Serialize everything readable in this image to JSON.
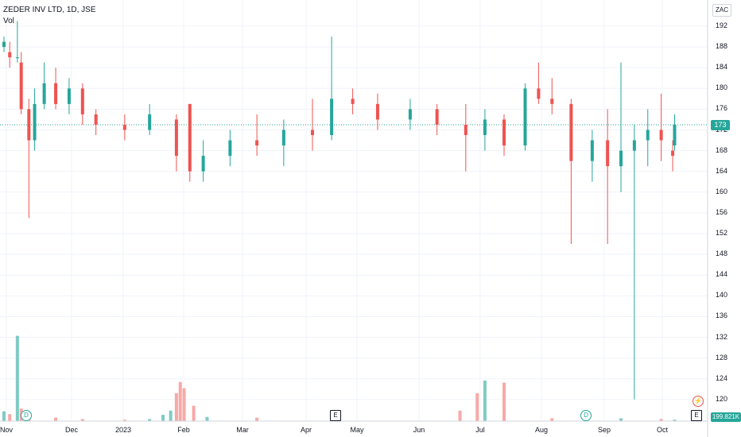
{
  "legend": {
    "symbol_line": "ZEDER INV LTD, 1D, JSE",
    "vol_label": "Vol"
  },
  "currency": "ZAC",
  "last_price": "173",
  "last_volume": "199.821K",
  "y_ticks": [
    "192",
    "188",
    "184",
    "180",
    "176",
    "172",
    "168",
    "164",
    "160",
    "156",
    "152",
    "148",
    "144",
    "140",
    "136",
    "132",
    "128",
    "124",
    "120"
  ],
  "x_ticks": [
    "Nov",
    "Dec",
    "2023",
    "Feb",
    "Mar",
    "Apr",
    "May",
    "Jun",
    "Jul",
    "Aug",
    "Sep",
    "Oct"
  ],
  "events": {
    "dividend_1": "D",
    "earnings_1": "E",
    "dividend_2": "D",
    "earnings_2": "E",
    "flash": "⚡"
  },
  "colors": {
    "up": "#26a69a",
    "down": "#ef5350",
    "up_vol": "#80cbc4",
    "down_vol": "#f7a9a7",
    "grid": "#f0f3fa"
  },
  "chart_data": {
    "type": "candlestick",
    "title": "ZEDER INV LTD, 1D, JSE",
    "ylim": [
      118,
      194
    ],
    "y_unit": "ZAC",
    "x_range": [
      "2022-11-01",
      "2023-10-17"
    ],
    "grid": true,
    "series": [
      {
        "name": "ZEDER INV LTD",
        "kind": "ohlc",
        "points": [
          {
            "date": "2022-11-01",
            "open": 188,
            "high": 190,
            "low": 187,
            "close": 189
          },
          {
            "date": "2022-11-04",
            "open": 187,
            "high": 189,
            "low": 184,
            "close": 186
          },
          {
            "date": "2022-11-08",
            "open": 186,
            "high": 193,
            "low": 185,
            "close": 186
          },
          {
            "date": "2022-11-10",
            "open": 185,
            "high": 187,
            "low": 175,
            "close": 176
          },
          {
            "date": "2022-11-14",
            "open": 176,
            "high": 178,
            "low": 155,
            "close": 170
          },
          {
            "date": "2022-11-17",
            "open": 170,
            "high": 180,
            "low": 168,
            "close": 177
          },
          {
            "date": "2022-11-22",
            "open": 177,
            "high": 185,
            "low": 176,
            "close": 181
          },
          {
            "date": "2022-11-28",
            "open": 181,
            "high": 184,
            "low": 176,
            "close": 177
          },
          {
            "date": "2022-12-05",
            "open": 177,
            "high": 182,
            "low": 175,
            "close": 180
          },
          {
            "date": "2022-12-12",
            "open": 180,
            "high": 181,
            "low": 173,
            "close": 175
          },
          {
            "date": "2022-12-19",
            "open": 175,
            "high": 176,
            "low": 171,
            "close": 173
          },
          {
            "date": "2023-01-03",
            "open": 173,
            "high": 175,
            "low": 170,
            "close": 172
          },
          {
            "date": "2023-01-16",
            "open": 172,
            "high": 177,
            "low": 171,
            "close": 175
          },
          {
            "date": "2023-01-30",
            "open": 174,
            "high": 175,
            "low": 164,
            "close": 167
          },
          {
            "date": "2023-02-06",
            "open": 177,
            "high": 177,
            "low": 162,
            "close": 164
          },
          {
            "date": "2023-02-13",
            "open": 164,
            "high": 170,
            "low": 162,
            "close": 167
          },
          {
            "date": "2023-02-27",
            "open": 167,
            "high": 172,
            "low": 165,
            "close": 170
          },
          {
            "date": "2023-03-13",
            "open": 170,
            "high": 175,
            "low": 167,
            "close": 169
          },
          {
            "date": "2023-03-27",
            "open": 169,
            "high": 174,
            "low": 165,
            "close": 172
          },
          {
            "date": "2023-04-11",
            "open": 172,
            "high": 178,
            "low": 168,
            "close": 171
          },
          {
            "date": "2023-04-21",
            "open": 171,
            "high": 190,
            "low": 170,
            "close": 178
          },
          {
            "date": "2023-05-02",
            "open": 178,
            "high": 180,
            "low": 175,
            "close": 177
          },
          {
            "date": "2023-05-15",
            "open": 177,
            "high": 179,
            "low": 172,
            "close": 174
          },
          {
            "date": "2023-06-01",
            "open": 174,
            "high": 178,
            "low": 172,
            "close": 176
          },
          {
            "date": "2023-06-15",
            "open": 176,
            "high": 177,
            "low": 171,
            "close": 173
          },
          {
            "date": "2023-06-30",
            "open": 173,
            "high": 177,
            "low": 164,
            "close": 171
          },
          {
            "date": "2023-07-10",
            "open": 171,
            "high": 176,
            "low": 168,
            "close": 174
          },
          {
            "date": "2023-07-20",
            "open": 174,
            "high": 175,
            "low": 167,
            "close": 169
          },
          {
            "date": "2023-07-31",
            "open": 169,
            "high": 181,
            "low": 168,
            "close": 180
          },
          {
            "date": "2023-08-07",
            "open": 180,
            "high": 185,
            "low": 177,
            "close": 178
          },
          {
            "date": "2023-08-14",
            "open": 178,
            "high": 182,
            "low": 175,
            "close": 177
          },
          {
            "date": "2023-08-24",
            "open": 177,
            "high": 178,
            "low": 150,
            "close": 166
          },
          {
            "date": "2023-09-04",
            "open": 166,
            "high": 172,
            "low": 162,
            "close": 170
          },
          {
            "date": "2023-09-12",
            "open": 170,
            "high": 176,
            "low": 150,
            "close": 165
          },
          {
            "date": "2023-09-19",
            "open": 165,
            "high": 185,
            "low": 160,
            "close": 168
          },
          {
            "date": "2023-09-26",
            "open": 168,
            "high": 173,
            "low": 120,
            "close": 170
          },
          {
            "date": "2023-10-03",
            "open": 170,
            "high": 176,
            "low": 165,
            "close": 172
          },
          {
            "date": "2023-10-10",
            "open": 172,
            "high": 179,
            "low": 166,
            "close": 170
          },
          {
            "date": "2023-10-16",
            "open": 168,
            "high": 170,
            "low": 164,
            "close": 167
          },
          {
            "date": "2023-10-17",
            "open": 169,
            "high": 175,
            "low": 168,
            "close": 173
          }
        ]
      },
      {
        "name": "Vol",
        "kind": "volume",
        "points": [
          {
            "date": "2022-11-01",
            "value": 14
          },
          {
            "date": "2022-11-04",
            "value": 10
          },
          {
            "date": "2022-11-08",
            "value": 122
          },
          {
            "date": "2022-11-10",
            "value": 18
          },
          {
            "date": "2022-11-14",
            "value": 4
          },
          {
            "date": "2022-11-28",
            "value": 5
          },
          {
            "date": "2022-12-12",
            "value": 3
          },
          {
            "date": "2023-01-03",
            "value": 2
          },
          {
            "date": "2023-01-16",
            "value": 3
          },
          {
            "date": "2023-01-23",
            "value": 9
          },
          {
            "date": "2023-01-27",
            "value": 15
          },
          {
            "date": "2023-01-30",
            "value": 40
          },
          {
            "date": "2023-02-01",
            "value": 56
          },
          {
            "date": "2023-02-03",
            "value": 47
          },
          {
            "date": "2023-02-08",
            "value": 22
          },
          {
            "date": "2023-02-15",
            "value": 6
          },
          {
            "date": "2023-03-13",
            "value": 5
          },
          {
            "date": "2023-04-21",
            "value": 6
          },
          {
            "date": "2023-06-27",
            "value": 15
          },
          {
            "date": "2023-07-06",
            "value": 40
          },
          {
            "date": "2023-07-10",
            "value": 58
          },
          {
            "date": "2023-07-20",
            "value": 55
          },
          {
            "date": "2023-08-14",
            "value": 4
          },
          {
            "date": "2023-09-19",
            "value": 4
          },
          {
            "date": "2023-10-10",
            "value": 3
          },
          {
            "date": "2023-10-17",
            "value": 2
          }
        ]
      }
    ],
    "events": [
      {
        "date": "2022-11-11",
        "type": "dividend"
      },
      {
        "date": "2023-04-14",
        "type": "earnings"
      },
      {
        "date": "2023-08-24",
        "type": "dividend"
      },
      {
        "date": "2023-10-17",
        "type": "earnings"
      }
    ]
  }
}
